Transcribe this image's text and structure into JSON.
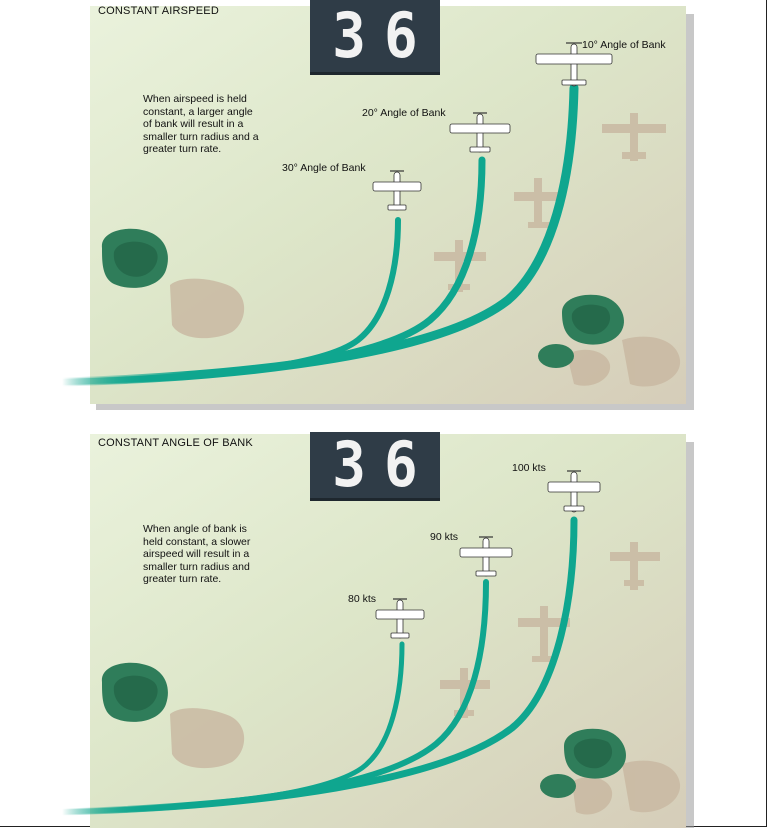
{
  "panels": [
    {
      "title": "CONSTANT AIRSPEED",
      "runway_number": "36",
      "explanation": "When airspeed is held constant, a larger angle of bank will result in a smaller turn radius and a greater turn rate.",
      "plane_labels": [
        "10° Angle of Bank",
        "20° Angle of Bank",
        "30° Angle of Bank"
      ]
    },
    {
      "title": "CONSTANT ANGLE OF BANK",
      "runway_number": "36",
      "explanation": "When angle of bank is held constant, a slower airspeed will result in a smaller turn radius and greater turn rate.",
      "plane_labels": [
        "100 kts",
        "90 kts",
        "80 kts"
      ]
    }
  ],
  "colors": {
    "ground_light": "#dfe9cf",
    "ground_dark": "#d7d1c1",
    "track": "#0fa68f",
    "tree": "#2f7d5a",
    "tree_dark": "#1d5e40",
    "shadow": "#c4b59f",
    "runway_sign": "#2f3c47"
  }
}
